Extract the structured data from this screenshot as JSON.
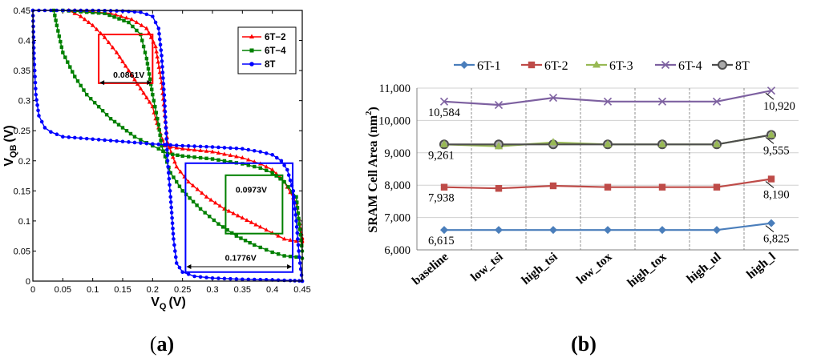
{
  "chart_data": [
    {
      "panel": "(a)",
      "type": "line",
      "title": "",
      "xlabel": "V_Q (V)",
      "ylabel": "V_QB (V)",
      "xlabel_main": "V",
      "xlabel_sub": "Q",
      "xlabel_unit": "(V)",
      "ylabel_main": "V",
      "ylabel_sub": "QB",
      "ylabel_unit": "(V)",
      "xlim": [
        0,
        0.45
      ],
      "ylim": [
        0,
        0.45
      ],
      "xticks": [
        0,
        0.05,
        0.1,
        0.15,
        0.2,
        0.25,
        0.3,
        0.35,
        0.4,
        0.45
      ],
      "xtick_labels": [
        "0",
        "0.05",
        "0.1",
        "0.15",
        "0.2",
        "0.25",
        "0.3",
        "0.35",
        "0.4",
        "0.45"
      ],
      "yticks": [
        0,
        0.05,
        0.1,
        0.15,
        0.2,
        0.25,
        0.3,
        0.35,
        0.4,
        0.45
      ],
      "ytick_labels": [
        "0",
        "0.05",
        "0.1",
        "0.15",
        "0.2",
        "0.25",
        "0.3",
        "0.35",
        "0.4",
        "0.45"
      ],
      "legend": [
        "6T−2",
        "6T−4",
        "8T"
      ],
      "legend_position": "top-right",
      "series": [
        {
          "name": "6T−2",
          "color": "#ff0000",
          "marker": "triangle",
          "curve1": {
            "x": [
              0.06,
              0.08,
              0.1,
              0.12,
              0.14,
              0.16,
              0.18,
              0.2,
              0.205,
              0.21,
              0.22,
              0.25,
              0.3,
              0.35,
              0.38,
              0.4,
              0.42,
              0.44,
              0.45
            ],
            "y": [
              0.45,
              0.44,
              0.425,
              0.405,
              0.38,
              0.35,
              0.32,
              0.29,
              0.27,
              0.255,
              0.225,
              0.22,
              0.215,
              0.205,
              0.195,
              0.185,
              0.165,
              0.13,
              0.07
            ]
          },
          "curve2": {
            "x": [
              0.07,
              0.13,
              0.165,
              0.19,
              0.205,
              0.215,
              0.225,
              0.24,
              0.26,
              0.29,
              0.32,
              0.35,
              0.38,
              0.4,
              0.42,
              0.43,
              0.45
            ],
            "y": [
              0.45,
              0.445,
              0.435,
              0.42,
              0.39,
              0.33,
              0.23,
              0.19,
              0.165,
              0.14,
              0.12,
              0.105,
              0.09,
              0.08,
              0.07,
              0.068,
              0.065
            ]
          }
        },
        {
          "name": "6T−4",
          "color": "#008000",
          "marker": "square",
          "curve1": {
            "x": [
              0.035,
              0.04,
              0.05,
              0.07,
              0.09,
              0.11,
              0.13,
              0.15,
              0.17,
              0.19,
              0.21,
              0.225,
              0.25,
              0.3,
              0.35,
              0.38,
              0.4,
              0.42,
              0.44,
              0.45
            ],
            "y": [
              0.45,
              0.425,
              0.38,
              0.34,
              0.31,
              0.29,
              0.27,
              0.255,
              0.24,
              0.23,
              0.22,
              0.212,
              0.208,
              0.203,
              0.195,
              0.188,
              0.18,
              0.165,
              0.14,
              0.05
            ]
          },
          "curve2": {
            "x": [
              0.05,
              0.12,
              0.16,
              0.18,
              0.19,
              0.2,
              0.21,
              0.215,
              0.23,
              0.25,
              0.28,
              0.31,
              0.34,
              0.37,
              0.4,
              0.42,
              0.44,
              0.45
            ],
            "y": [
              0.45,
              0.445,
              0.43,
              0.41,
              0.37,
              0.31,
              0.26,
              0.225,
              0.18,
              0.15,
              0.12,
              0.095,
              0.075,
              0.06,
              0.048,
              0.042,
              0.04,
              0.038
            ]
          }
        },
        {
          "name": "8T",
          "color": "#0000ff",
          "marker": "circle",
          "curve1": {
            "x": [
              0.0,
              0.002,
              0.005,
              0.01,
              0.02,
              0.03,
              0.05,
              0.1,
              0.15,
              0.2,
              0.25,
              0.3,
              0.35,
              0.38,
              0.4,
              0.415,
              0.425,
              0.435,
              0.44,
              0.445,
              0.45
            ],
            "y": [
              0.45,
              0.37,
              0.31,
              0.275,
              0.255,
              0.248,
              0.24,
              0.236,
              0.232,
              0.228,
              0.225,
              0.223,
              0.22,
              0.215,
              0.21,
              0.2,
              0.185,
              0.15,
              0.1,
              0.04,
              0.0
            ]
          },
          "curve2": {
            "x": [
              0.0,
              0.05,
              0.1,
              0.15,
              0.18,
              0.2,
              0.21,
              0.215,
              0.22,
              0.225,
              0.23,
              0.235,
              0.24,
              0.25,
              0.27,
              0.3,
              0.35,
              0.4,
              0.43,
              0.445,
              0.45
            ],
            "y": [
              0.45,
              0.45,
              0.45,
              0.449,
              0.447,
              0.44,
              0.42,
              0.375,
              0.3,
              0.2,
              0.14,
              0.07,
              0.03,
              0.015,
              0.008,
              0.005,
              0.003,
              0.002,
              0.001,
              0.0005,
              0.0
            ]
          }
        }
      ],
      "annotations": [
        {
          "label": "0.0861V",
          "color": "#ff0000",
          "box": {
            "x0": 0.11,
            "x1": 0.2,
            "y0": 0.329,
            "y1": 0.41
          },
          "arrow_y": 0.33
        },
        {
          "label": "0.0973V",
          "color": "#008000",
          "box": {
            "x0": 0.322,
            "x1": 0.417,
            "y0": 0.079,
            "y1": 0.176
          },
          "label_y": 0.158
        },
        {
          "label": "0.1776V",
          "color": "#0000ff",
          "box": {
            "x0": 0.255,
            "x1": 0.434,
            "y0": 0.015,
            "y1": 0.196
          },
          "arrow_y": 0.024,
          "label_y": 0.034
        }
      ]
    },
    {
      "panel": "(b)",
      "type": "line",
      "title": "",
      "xlabel": "",
      "ylabel": "SRAM Cell Area (nm²)",
      "ylabel_text": "SRAM Cell Area (nm",
      "ylabel_sup": "2",
      "ylabel_end": ")",
      "ylim": [
        6000,
        11000
      ],
      "yticks": [
        6000,
        7000,
        8000,
        9000,
        10000,
        11000
      ],
      "ytick_labels": [
        "6,000",
        "7,000",
        "8,000",
        "9,000",
        "10,000",
        "11,000"
      ],
      "categories": [
        "baseline",
        "low_tsi",
        "high_tsi",
        "low_tox",
        "high_tox",
        "high_ul",
        "high_l"
      ],
      "legend_position": "top",
      "series": [
        {
          "name": "6T-1",
          "color": "#4a7ebb",
          "marker": "diamond",
          "values": [
            6615,
            6615,
            6615,
            6615,
            6615,
            6615,
            6825
          ]
        },
        {
          "name": "6T-2",
          "color": "#be4b48",
          "marker": "square",
          "values": [
            7938,
            7900,
            7980,
            7938,
            7938,
            7938,
            8190
          ]
        },
        {
          "name": "6T-3",
          "color": "#98b954",
          "marker": "triangle",
          "values": [
            9261,
            9200,
            9320,
            9261,
            9261,
            9261,
            9555
          ]
        },
        {
          "name": "6T-4",
          "color": "#7d60a0",
          "marker": "x",
          "values": [
            10584,
            10480,
            10700,
            10584,
            10584,
            10584,
            10920
          ]
        },
        {
          "name": "8T",
          "color": "#4d4d4d",
          "fill": "#a9a9a9",
          "marker": "circle",
          "values": [
            9261,
            9261,
            9261,
            9261,
            9261,
            9261,
            9555
          ]
        }
      ],
      "data_labels": [
        {
          "text": "10,584",
          "category": 0,
          "value": 10584
        },
        {
          "text": "9,261",
          "category": 0,
          "value": 9261
        },
        {
          "text": "7,938",
          "category": 0,
          "value": 7938
        },
        {
          "text": "6,615",
          "category": 0,
          "value": 6615
        },
        {
          "text": "10,920",
          "category": 6,
          "value": 10920
        },
        {
          "text": "9,555",
          "category": 6,
          "value": 9555
        },
        {
          "text": "8,190",
          "category": 6,
          "value": 8190
        },
        {
          "text": "6,825",
          "category": 6,
          "value": 6825
        }
      ]
    }
  ],
  "captions": {
    "a": "(a)",
    "b": "(b)"
  }
}
